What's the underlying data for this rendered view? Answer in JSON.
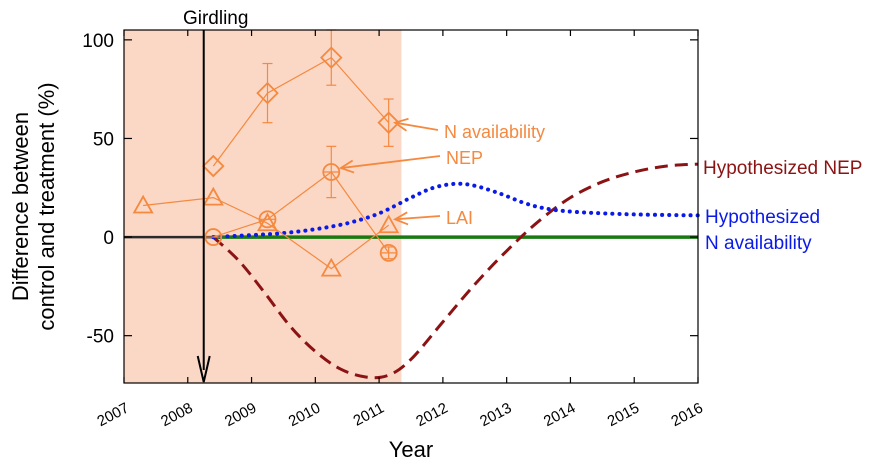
{
  "chart_data": {
    "type": "line",
    "xlabel": "Year",
    "ylabel_lines": [
      "Difference between",
      "control and treatment (%)"
    ],
    "x_ticks": [
      "2007",
      "2008",
      "2009",
      "2010",
      "2011",
      "2012",
      "2013",
      "2014",
      "2015",
      "2016"
    ],
    "y_ticks": [
      -50,
      0,
      50,
      100
    ],
    "xlim": [
      2007,
      2016
    ],
    "ylim": [
      -74,
      105
    ],
    "shaded_region": {
      "x_start": 2007,
      "x_end": 2011.35,
      "color": "#fbd8c6"
    },
    "girdling": {
      "label": "Girdling",
      "x": 2008.25
    },
    "zero_line": {
      "y": 0,
      "color": "#1a7a12"
    },
    "observed_color": "#f5893f",
    "observed_series": [
      {
        "name": "N availability",
        "marker": "diamond",
        "points": [
          {
            "x": 2008.4,
            "y": 36
          },
          {
            "x": 2009.25,
            "y": 73,
            "err": 15
          },
          {
            "x": 2010.25,
            "y": 91,
            "err": 14
          },
          {
            "x": 2011.15,
            "y": 58,
            "err": 12
          }
        ]
      },
      {
        "name": "NEP",
        "marker": "circle",
        "points": [
          {
            "x": 2008.4,
            "y": 0
          },
          {
            "x": 2009.25,
            "y": 9
          },
          {
            "x": 2010.25,
            "y": 33,
            "err": 13
          },
          {
            "x": 2011.15,
            "y": -8,
            "err": 3
          }
        ]
      },
      {
        "name": "LAI",
        "marker": "triangle",
        "points": [
          {
            "x": 2007.3,
            "y": 16
          },
          {
            "x": 2008.4,
            "y": 20
          },
          {
            "x": 2009.25,
            "y": 7
          },
          {
            "x": 2010.25,
            "y": -16
          },
          {
            "x": 2011.15,
            "y": 6
          }
        ]
      }
    ],
    "series_labels": [
      {
        "text": "N availability",
        "arrow_to": {
          "x": 2011.25,
          "y": 58
        }
      },
      {
        "text": "NEP",
        "arrow_to": {
          "x": 2010.4,
          "y": 35
        }
      },
      {
        "text": "LAI",
        "arrow_to": {
          "x": 2011.25,
          "y": 9
        }
      }
    ],
    "hypothesized": [
      {
        "name": "Hypothesized NEP",
        "label_lines": [
          "Hypothesized NEP"
        ],
        "color": "#8b1313",
        "style": "dashed",
        "points": [
          {
            "x": 2008.4,
            "y": 0
          },
          {
            "x": 2008.8,
            "y": -12
          },
          {
            "x": 2009.2,
            "y": -28
          },
          {
            "x": 2009.6,
            "y": -45
          },
          {
            "x": 2010.0,
            "y": -58
          },
          {
            "x": 2010.4,
            "y": -67
          },
          {
            "x": 2010.8,
            "y": -71
          },
          {
            "x": 2011.15,
            "y": -70
          },
          {
            "x": 2011.5,
            "y": -62
          },
          {
            "x": 2012.0,
            "y": -43
          },
          {
            "x": 2012.5,
            "y": -24
          },
          {
            "x": 2013.0,
            "y": -7
          },
          {
            "x": 2013.5,
            "y": 8
          },
          {
            "x": 2014.0,
            "y": 20
          },
          {
            "x": 2014.5,
            "y": 28
          },
          {
            "x": 2015.0,
            "y": 33
          },
          {
            "x": 2015.5,
            "y": 36
          },
          {
            "x": 2016.0,
            "y": 37
          }
        ]
      },
      {
        "name": "Hypothesized N availability",
        "label_lines": [
          "Hypothesized",
          "N availability"
        ],
        "color": "#0a1ae8",
        "style": "dotted",
        "points": [
          {
            "x": 2008.4,
            "y": 0
          },
          {
            "x": 2009.0,
            "y": 1
          },
          {
            "x": 2009.5,
            "y": 2
          },
          {
            "x": 2010.0,
            "y": 4
          },
          {
            "x": 2010.5,
            "y": 7
          },
          {
            "x": 2011.0,
            "y": 12
          },
          {
            "x": 2011.5,
            "y": 20
          },
          {
            "x": 2011.85,
            "y": 25
          },
          {
            "x": 2012.2,
            "y": 27
          },
          {
            "x": 2012.5,
            "y": 26
          },
          {
            "x": 2012.9,
            "y": 22
          },
          {
            "x": 2013.3,
            "y": 17
          },
          {
            "x": 2013.7,
            "y": 14
          },
          {
            "x": 2014.2,
            "y": 12.5
          },
          {
            "x": 2015.0,
            "y": 11.5
          },
          {
            "x": 2016.0,
            "y": 11
          }
        ]
      }
    ]
  }
}
